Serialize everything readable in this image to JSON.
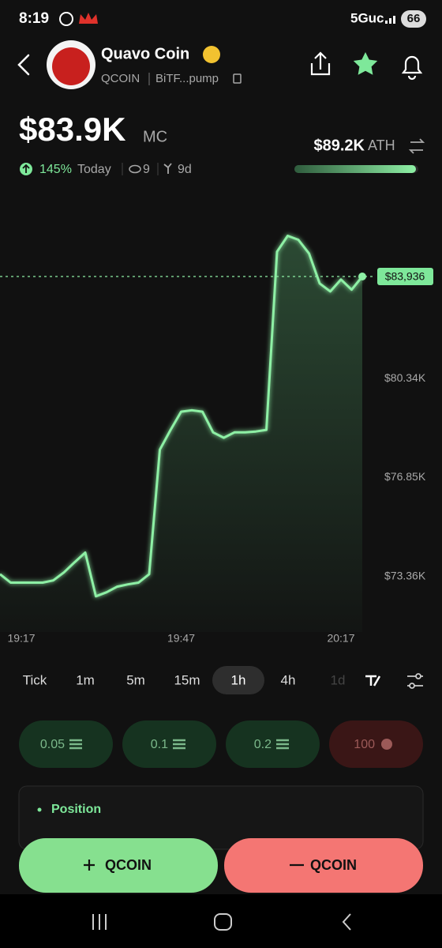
{
  "status_bar": {
    "time": "8:19",
    "network": "5Guc",
    "battery": "66"
  },
  "header": {
    "name": "Quavo Coin",
    "ticker": "QCOIN",
    "address": "BiTF...pump"
  },
  "market_cap": {
    "value": "$83.9K",
    "unit": "MC",
    "change": "145%",
    "period": "Today",
    "watchers": "9",
    "age": "9d"
  },
  "ath": {
    "value": "$89.2K",
    "label": "ATH"
  },
  "chart_data": {
    "type": "line",
    "color": "#8ef0a5",
    "x": [
      "19:13",
      "19:15",
      "19:17",
      "19:19",
      "19:21",
      "19:23",
      "19:25",
      "19:27",
      "19:29",
      "19:31",
      "19:33",
      "19:35",
      "19:37",
      "19:39",
      "19:41",
      "19:43",
      "19:45",
      "19:47",
      "19:49",
      "19:51",
      "19:53",
      "19:55",
      "19:57",
      "19:59",
      "20:01",
      "20:03",
      "20:05",
      "20:07",
      "20:09",
      "20:11",
      "20:13",
      "20:15",
      "20:17",
      "20:19",
      "20:21"
    ],
    "values": [
      73440,
      73140,
      73140,
      73140,
      73140,
      73220,
      73500,
      73860,
      74200,
      72660,
      72800,
      73000,
      73080,
      73140,
      73440,
      77830,
      78520,
      79170,
      79220,
      79170,
      78440,
      78250,
      78440,
      78440,
      78470,
      78530,
      84810,
      85370,
      85230,
      84750,
      83690,
      83410,
      83830,
      83470,
      83936
    ],
    "value_labels": [
      null,
      null,
      null,
      null,
      null,
      null,
      null,
      null,
      null,
      null,
      null,
      null,
      null,
      null,
      null,
      null,
      null,
      null,
      null,
      null,
      null,
      null,
      null,
      null,
      null,
      null,
      null,
      null,
      null,
      null,
      null,
      null,
      null,
      null,
      "$83,936"
    ],
    "xticks": [
      "19:17",
      "19:47",
      "20:17"
    ],
    "ylim": [
      71400,
      87000
    ],
    "yticks": [
      {
        "value": 73360,
        "label": "$73.36K"
      },
      {
        "value": 76850,
        "label": "$76.85K"
      },
      {
        "value": 80340,
        "label": "$80.34K"
      }
    ]
  },
  "timeframes": [
    "Tick",
    "1m",
    "5m",
    "15m",
    "1h",
    "4h",
    "1d"
  ],
  "selected_timeframe": "1h",
  "amounts": [
    "0.05",
    "0.1",
    "0.2",
    "100"
  ],
  "position": {
    "title": "Position"
  },
  "actions": {
    "buy": "QCOIN",
    "sell": "QCOIN"
  }
}
